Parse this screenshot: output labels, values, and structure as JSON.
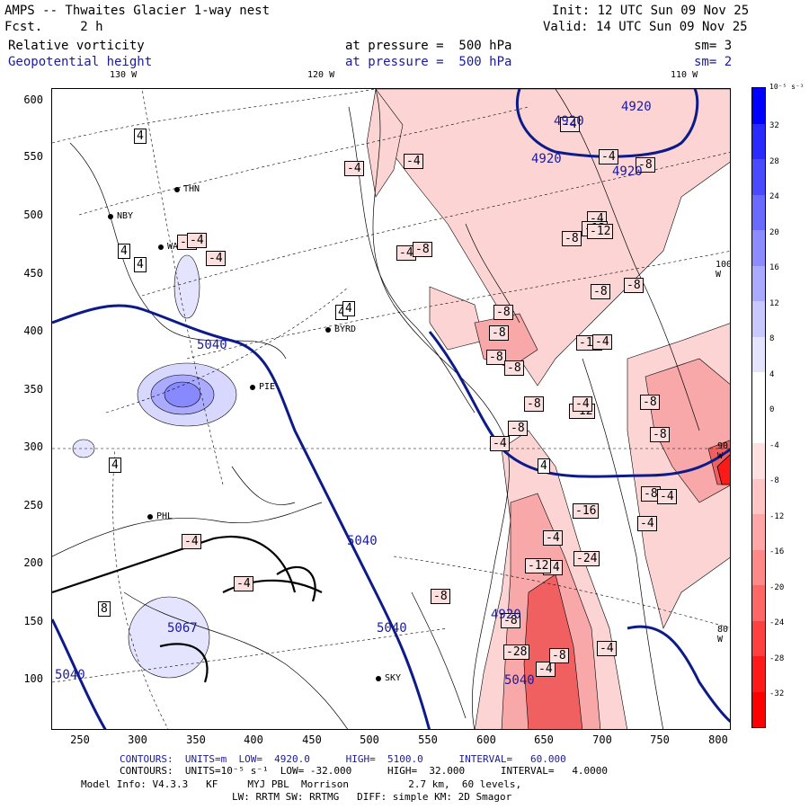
{
  "header": {
    "title": "AMPS -- Thwaites Glacier 1-way nest",
    "fcst": "Fcst.     2 h",
    "field1": "Relative vorticity",
    "field2": "Geopotential height",
    "pressure1": "at pressure =  500 hPa",
    "pressure2": "at pressure =  500 hPa",
    "sm1": "sm= 3",
    "sm2": "sm= 2",
    "init": "Init: 12 UTC Sun 09 Nov 25",
    "valid": "Valid: 14 UTC Sun 09 Nov 25"
  },
  "lon_labels_top": [
    "130 W",
    "120 W",
    "110 W"
  ],
  "lon_labels_right": [
    "100 W",
    "90 W",
    "80 W"
  ],
  "axes": {
    "y_ticks": [
      "600",
      "550",
      "500",
      "450",
      "400",
      "350",
      "300",
      "250",
      "200",
      "150",
      "100"
    ],
    "x_ticks": [
      "250",
      "300",
      "350",
      "400",
      "450",
      "500",
      "550",
      "600",
      "650",
      "700",
      "750",
      "800"
    ]
  },
  "stations": [
    "THN",
    "NBY",
    "WAIS",
    "PHL",
    "BYRD",
    "PIE",
    "SKY"
  ],
  "colorbar": {
    "unit": "10⁻⁵ s⁻¹",
    "labels": [
      "32",
      "28",
      "24",
      "20",
      "16",
      "12",
      "8",
      "4",
      "0",
      "-4",
      "-8",
      "-12",
      "-16",
      "-20",
      "-24",
      "-28",
      "-32"
    ],
    "colors": [
      "#0000ff",
      "#2a2aff",
      "#4a4aff",
      "#6a6aff",
      "#8c8cff",
      "#aaaaff",
      "#c8c8ff",
      "#e4e4ff",
      "#ffffff",
      "#ffffff",
      "#ffe0e0",
      "#ffc4c4",
      "#ffa6a6",
      "#ff8888",
      "#ff6666",
      "#ff4040",
      "#ff1a1a",
      "#ff0000"
    ]
  },
  "vort_labels": [
    "4",
    "4",
    "4",
    "4",
    "-4",
    "4",
    "-4",
    "-4",
    "4",
    "4",
    "4",
    "8",
    "-4",
    "-4",
    "-4",
    "-8",
    "-8",
    "-8",
    "-8",
    "-4",
    "-8",
    "-8",
    "-4",
    "-8",
    "-12",
    "-16",
    "-24",
    "-28",
    "-8",
    "-4",
    "4",
    "-4",
    "-4",
    "-4",
    "-4",
    "-8",
    "-12",
    "-16",
    "-8",
    "-4",
    "-4",
    "-12",
    "-4",
    "-8",
    "-8",
    "-8",
    "-4",
    "-4",
    "-8",
    "-8",
    "-12",
    "-8",
    "-4",
    "-4",
    "-8"
  ],
  "height_labels": [
    "4920",
    "4920",
    "4920",
    "4920",
    "5040",
    "5040",
    "5040",
    "5040",
    "4920",
    "5067",
    "5040"
  ],
  "footer": {
    "line1": "CONTOURS:  UNITS=m  LOW=  4920.0      HIGH=  5100.0      INTERVAL=   60.000",
    "line2": "CONTOURS:  UNITS=10⁻⁵ s⁻¹  LOW= -32.000      HIGH=  32.000      INTERVAL=   4.0000",
    "line3": "Model Info: V4.3.3   KF     MYJ PBL  Morrison          2.7 km,  60 levels,",
    "line4": "LW: RRTM SW: RRTMG   DIFF: simple KM: 2D Smagor"
  }
}
